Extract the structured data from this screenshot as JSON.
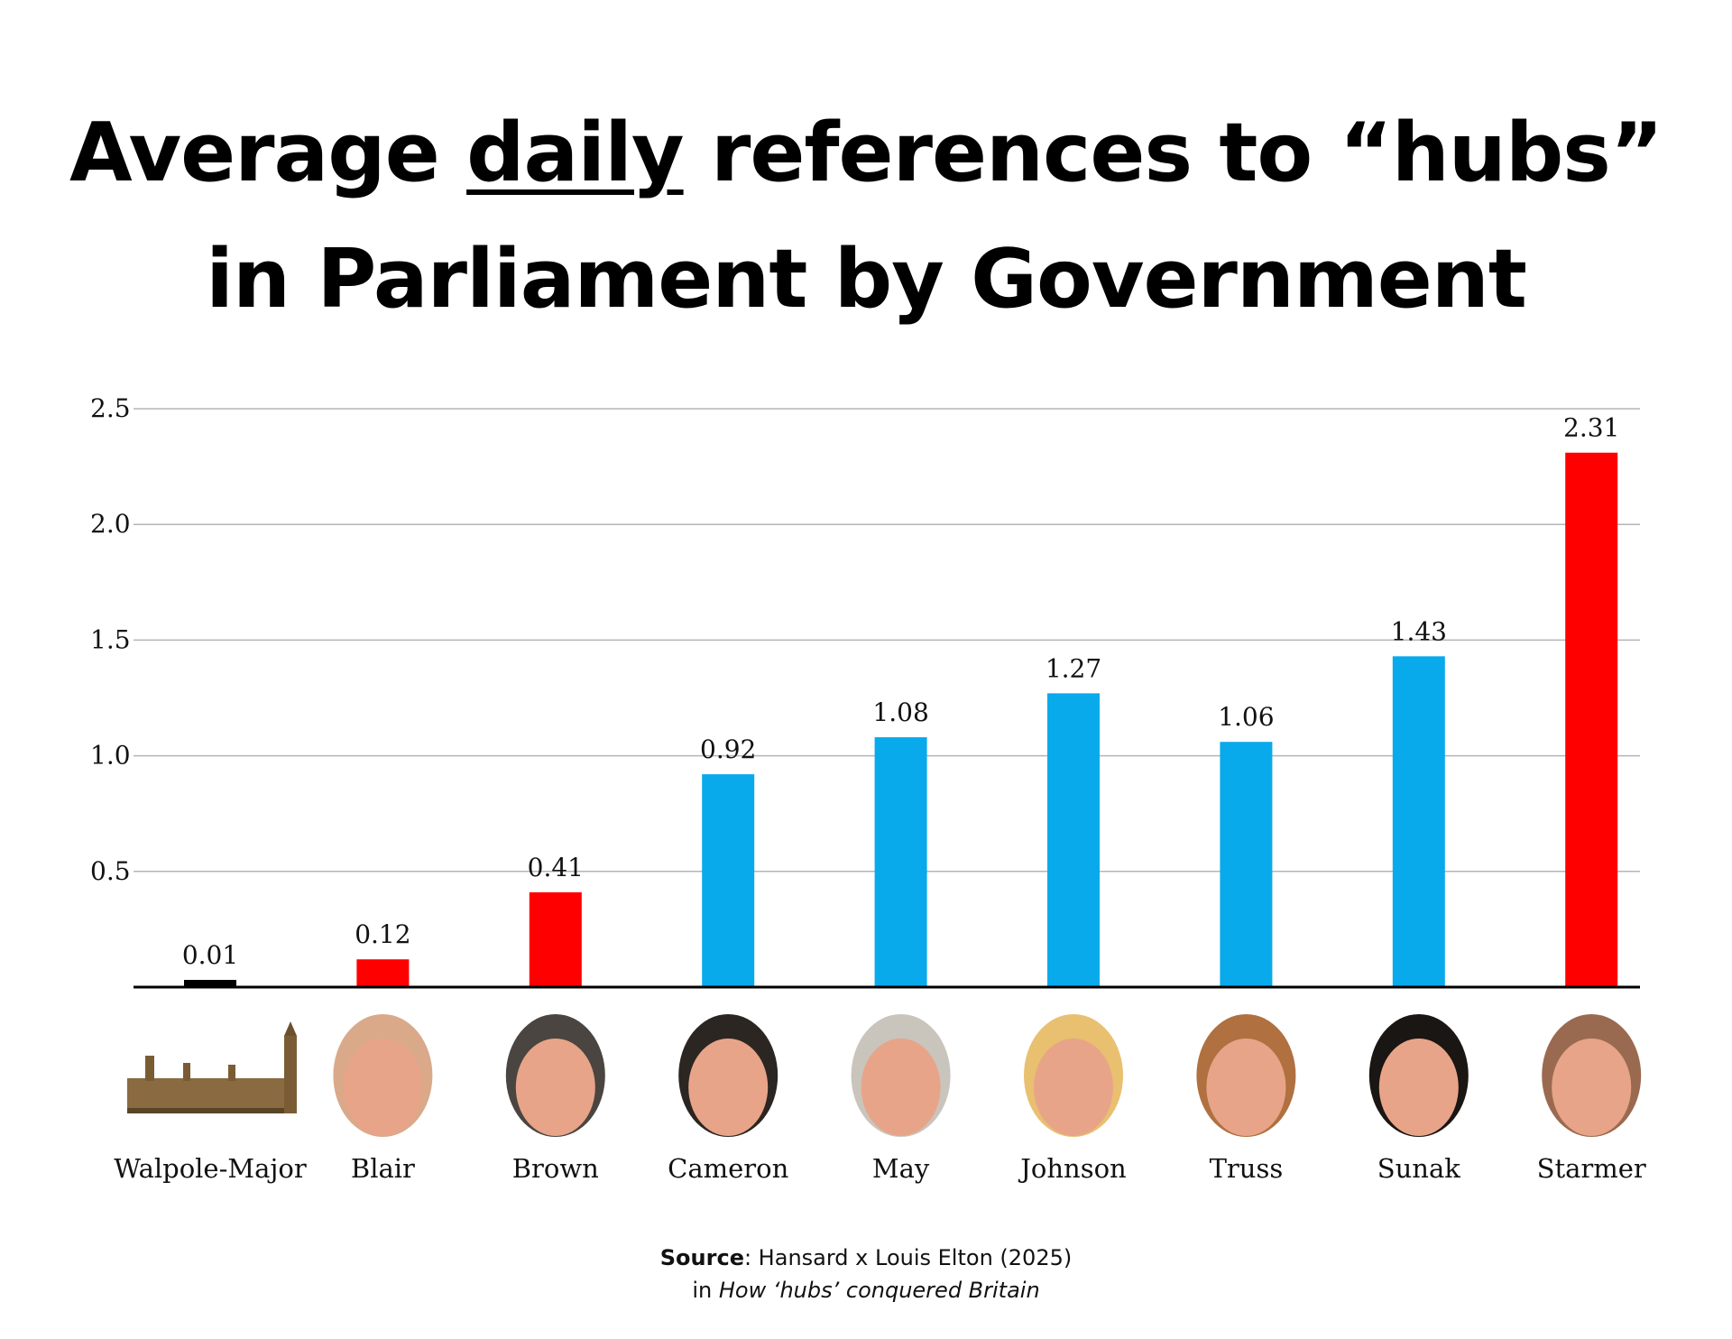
{
  "title": {
    "part1": "Average ",
    "emph": "daily",
    "part2": " references to “hubs”",
    "line2": "in Parliament by Government"
  },
  "chart_data": {
    "type": "bar",
    "categories": [
      "Walpole-Major",
      "Blair",
      "Brown",
      "Cameron",
      "May",
      "Johnson",
      "Truss",
      "Sunak",
      "Starmer"
    ],
    "values": [
      0.01,
      0.12,
      0.41,
      0.92,
      1.08,
      1.27,
      1.06,
      1.43,
      2.31
    ],
    "value_labels": [
      "0.01",
      "0.12",
      "0.41",
      "0.92",
      "1.08",
      "1.27",
      "1.06",
      "1.43",
      "2.31"
    ],
    "colors": [
      "#000000",
      "#ff0000",
      "#ff0000",
      "#08aaeb",
      "#08aaeb",
      "#08aaeb",
      "#08aaeb",
      "#08aaeb",
      "#ff0000"
    ],
    "yticks": [
      "0.5",
      "1.0",
      "1.5",
      "2.0",
      "2.5"
    ],
    "ytick_values": [
      0.5,
      1.0,
      1.5,
      2.0,
      2.5
    ],
    "ylim": [
      0,
      2.5
    ],
    "grid": true,
    "icons": [
      "parliament-building-icon",
      "blair-portrait-icon",
      "brown-portrait-icon",
      "cameron-portrait-icon",
      "may-portrait-icon",
      "johnson-portrait-icon",
      "truss-portrait-icon",
      "sunak-portrait-icon",
      "starmer-portrait-icon"
    ]
  },
  "source": {
    "label": "Source",
    "text": ": Hansard x Louis Elton (2025)",
    "prefix": "in ",
    "work": "How ‘hubs’ conquered Britain"
  }
}
